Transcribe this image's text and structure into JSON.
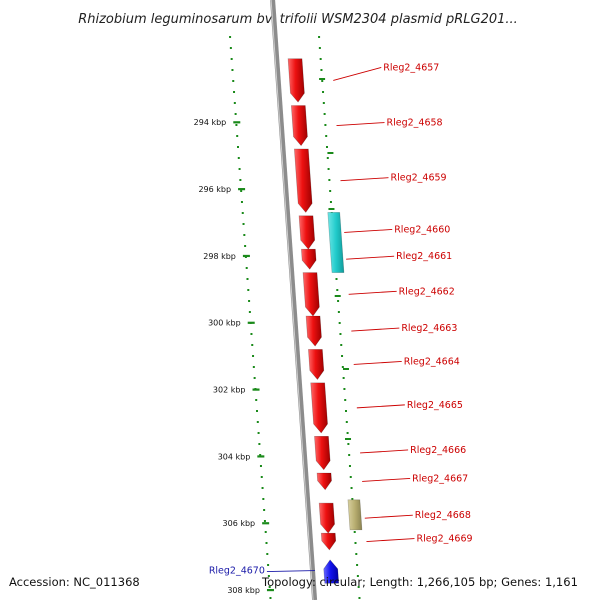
{
  "title": "Rhizobium leguminosarum bv. trifolii WSM2304 plasmid pRLG201...",
  "footer": {
    "accession": "Accession: NC_011368",
    "summary": "Topology: circular; Length: 1,266,105 bp; Genes: 1,161"
  },
  "scale_ticks": [
    {
      "label": "294 kbp",
      "kbp": 294
    },
    {
      "label": "296 kbp",
      "kbp": 296
    },
    {
      "label": "298 kbp",
      "kbp": 298
    },
    {
      "label": "300 kbp",
      "kbp": 300
    },
    {
      "label": "302 kbp",
      "kbp": 302
    },
    {
      "label": "304 kbp",
      "kbp": 304
    },
    {
      "label": "306 kbp",
      "kbp": 306
    },
    {
      "label": "308 kbp",
      "kbp": 308
    }
  ],
  "genes": [
    {
      "label": "Rleg2_4657",
      "start_kbp": 292.1,
      "end_kbp": 293.4,
      "strand": "+",
      "color": "#ee1111",
      "side": "right"
    },
    {
      "label": "Rleg2_4658",
      "start_kbp": 293.5,
      "end_kbp": 294.7,
      "strand": "+",
      "color": "#ee1111",
      "side": "right"
    },
    {
      "label": "Rleg2_4659",
      "start_kbp": 294.8,
      "end_kbp": 296.7,
      "strand": "+",
      "color": "#ee1111",
      "side": "right"
    },
    {
      "label": "Rleg2_4660",
      "start_kbp": 296.8,
      "end_kbp": 297.8,
      "strand": "+",
      "color": "#ee1111",
      "side": "right"
    },
    {
      "label": "Rleg2_4661",
      "start_kbp": 297.8,
      "end_kbp": 298.4,
      "strand": "+",
      "color": "#ee1111",
      "side": "right"
    },
    {
      "label": "Rleg2_4662",
      "start_kbp": 298.5,
      "end_kbp": 299.8,
      "strand": "+",
      "color": "#ee1111",
      "side": "right"
    },
    {
      "label": "Rleg2_4663",
      "start_kbp": 299.8,
      "end_kbp": 300.7,
      "strand": "+",
      "color": "#ee1111",
      "side": "right"
    },
    {
      "label": "Rleg2_4664",
      "start_kbp": 300.8,
      "end_kbp": 301.7,
      "strand": "+",
      "color": "#ee1111",
      "side": "right"
    },
    {
      "label": "Rleg2_4665",
      "start_kbp": 301.8,
      "end_kbp": 303.3,
      "strand": "+",
      "color": "#ee1111",
      "side": "right"
    },
    {
      "label": "Rleg2_4666",
      "start_kbp": 303.4,
      "end_kbp": 304.4,
      "strand": "+",
      "color": "#ee1111",
      "side": "right"
    },
    {
      "label": "Rleg2_4667",
      "start_kbp": 304.5,
      "end_kbp": 305.0,
      "strand": "+",
      "color": "#ee1111",
      "side": "right"
    },
    {
      "label": "Rleg2_4668",
      "start_kbp": 305.4,
      "end_kbp": 306.3,
      "strand": "+",
      "color": "#ee1111",
      "side": "right"
    },
    {
      "label": "Rleg2_4669",
      "start_kbp": 306.3,
      "end_kbp": 306.8,
      "strand": "+",
      "color": "#ee1111",
      "side": "right"
    },
    {
      "label": "Rleg2_4670",
      "start_kbp": 307.1,
      "end_kbp": 307.8,
      "strand": "-",
      "color": "#1111ee",
      "side": "left"
    }
  ],
  "features": [
    {
      "name": "cyan-feature",
      "start_kbp": 296.7,
      "end_kbp": 298.5,
      "color": "#22cccc"
    },
    {
      "name": "khaki-feature",
      "start_kbp": 305.3,
      "end_kbp": 306.2,
      "color": "#b8ae70"
    }
  ],
  "range_kbp": [
    291.3,
    308.3
  ]
}
